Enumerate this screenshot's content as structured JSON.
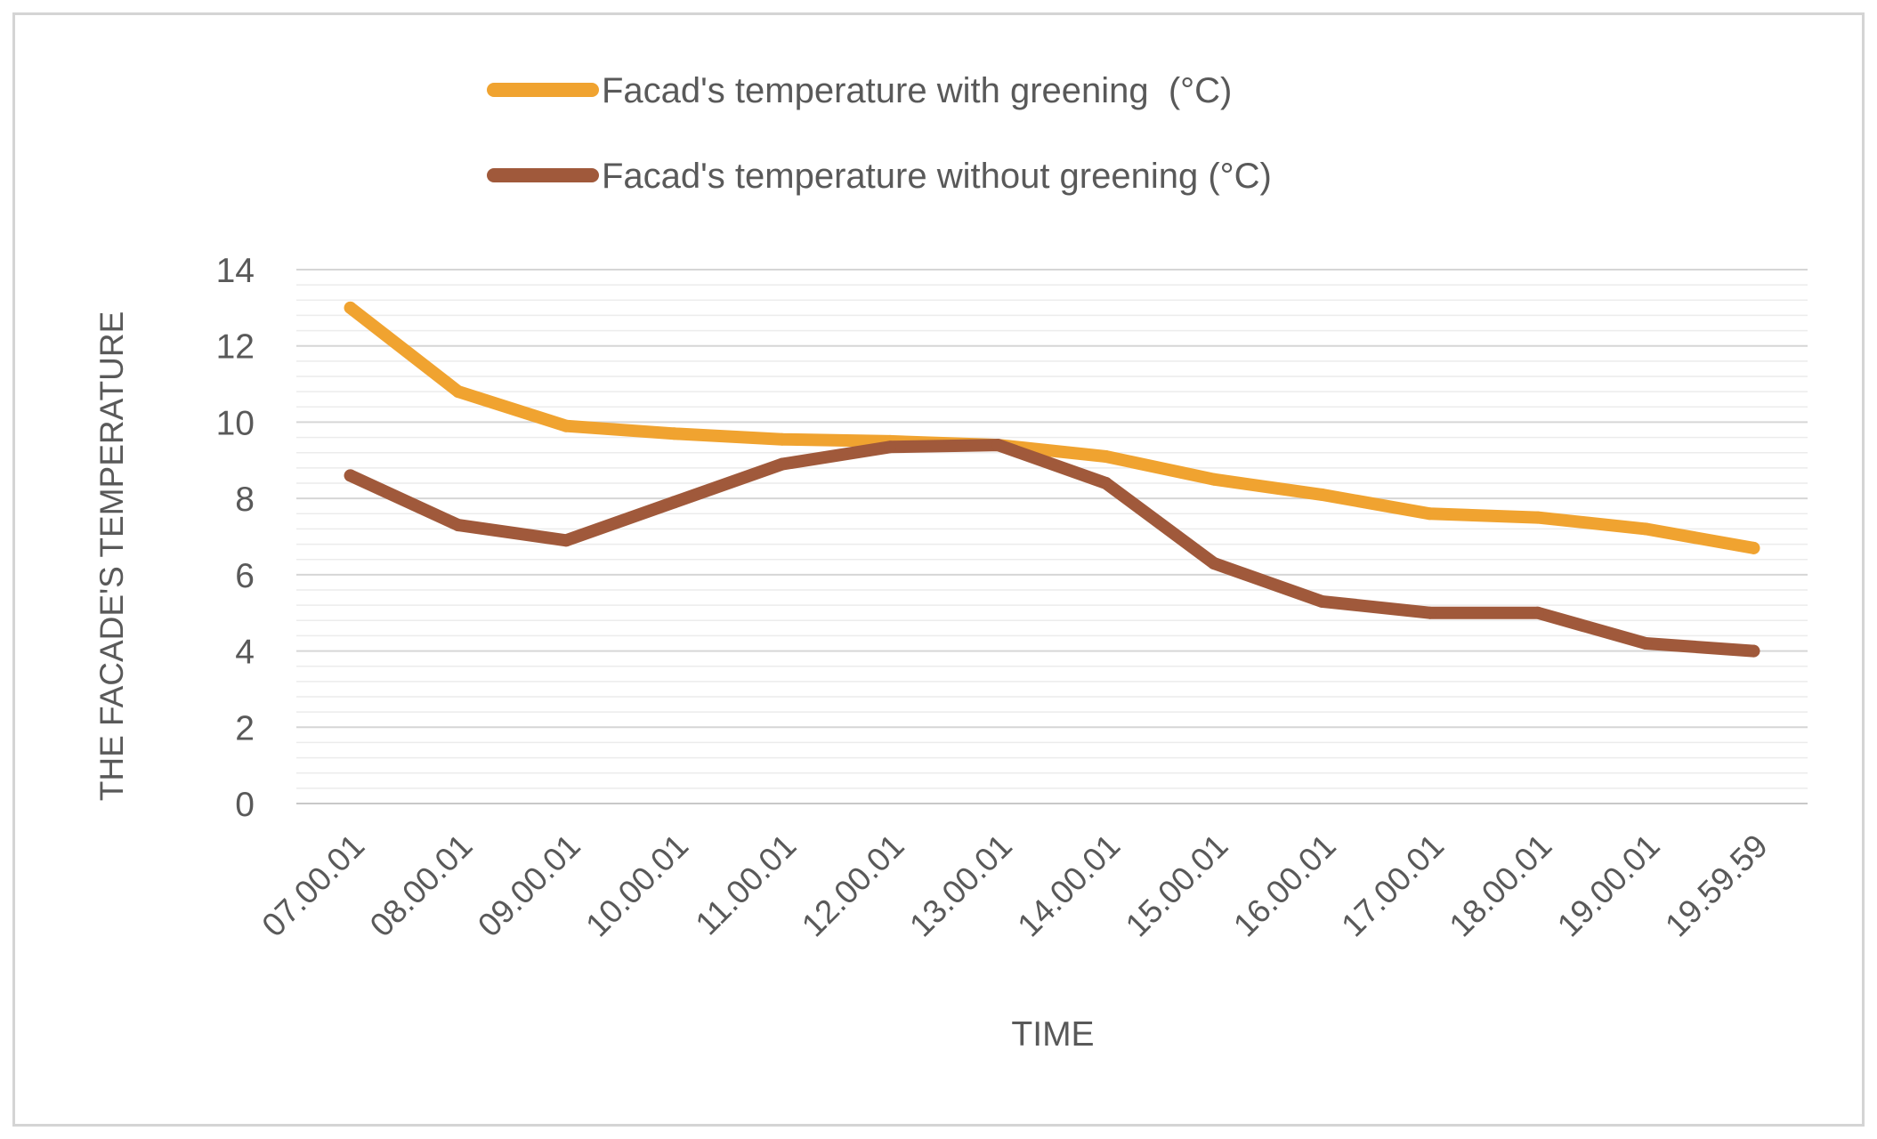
{
  "chart_data": {
    "type": "line",
    "title": "",
    "xlabel": "TIME",
    "ylabel": "THE FACADE'S TEMPERATURE",
    "ylim": [
      0,
      14
    ],
    "y_ticks": [
      "0",
      "2",
      "4",
      "6",
      "8",
      "10",
      "12",
      "14"
    ],
    "categories": [
      "07.00.01",
      "08.00.01",
      "09.00.01",
      "10.00.01",
      "11.00.01",
      "12.00.01",
      "13.00.01",
      "14.00.01",
      "15.00.01",
      "16.00.01",
      "17.00.01",
      "18.00.01",
      "19.00.01",
      "19.59.59"
    ],
    "legend_position": "top",
    "grid": true,
    "series": [
      {
        "name": "Facad's temperature with greening  (°C)",
        "color": "#f0a330",
        "values": [
          13.0,
          10.8,
          9.9,
          9.7,
          9.55,
          9.5,
          9.4,
          9.1,
          8.5,
          8.1,
          7.6,
          7.5,
          7.2,
          6.7
        ]
      },
      {
        "name": "Facad's temperature without greening (°C)",
        "color": "#a0593b",
        "values": [
          8.6,
          7.3,
          6.9,
          7.9,
          8.9,
          9.35,
          9.4,
          8.4,
          6.3,
          5.3,
          5.0,
          5.0,
          4.2,
          4.0
        ]
      }
    ]
  }
}
